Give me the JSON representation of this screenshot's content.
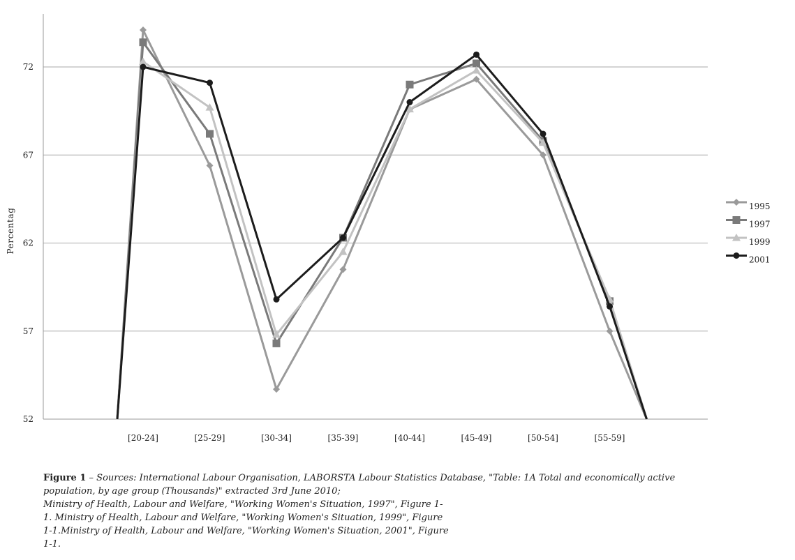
{
  "chart_data": {
    "type": "line",
    "title": "",
    "xlabel": "",
    "ylabel": "Percentag",
    "categories": [
      "[20-24]",
      "[25-29]",
      "[30-34]",
      "[35-39]",
      "[40-44]",
      "[45-49]",
      "[50-54]",
      "[55-59]"
    ],
    "yticks": [
      "52",
      "57",
      "62",
      "67",
      "72"
    ],
    "ylim": [
      52,
      75
    ],
    "grid": "horizontal",
    "legend_position": "right",
    "series": [
      {
        "name": "1995",
        "marker": "diamond",
        "color": "#9a9a9a",
        "values": [
          74.1,
          66.4,
          53.7,
          60.5,
          69.6,
          71.3,
          67.0,
          57.0
        ],
        "end_value": 52.0
      },
      {
        "name": "1997",
        "marker": "square",
        "color": "#7a7a7a",
        "values": [
          73.4,
          68.2,
          56.3,
          62.3,
          71.0,
          72.2,
          67.8,
          58.7
        ],
        "end_value": 52.0
      },
      {
        "name": "1999",
        "marker": "triangle",
        "color": "#c2c2c2",
        "values": [
          72.3,
          69.7,
          56.8,
          61.5,
          69.6,
          71.8,
          67.7,
          58.8
        ],
        "end_value": 52.0
      },
      {
        "name": "2001",
        "marker": "circle",
        "color": "#1c1c1c",
        "values": [
          72.0,
          71.1,
          58.8,
          62.3,
          70.0,
          72.7,
          68.2,
          58.4
        ],
        "end_value": 52.0
      }
    ],
    "start_value": 52.0
  },
  "caption": {
    "label": "Figure 1",
    "dash": " – ",
    "lines": [
      "Sources: International Labour Organisation, LABORSTA Labour Statistics Database, \"Table: 1A Total and economically active",
      "population, by age group (Thousands)\" extracted 3rd June 2010;",
      "Ministry of Health, Labour and Welfare, \"Working Women's Situation, 1997\", Figure 1-",
      "1. Ministry of Health, Labour and Welfare, \"Working Women's Situation, 1999\", Figure",
      "1-1.Ministry of Health, Labour and Welfare, \"Working Women's Situation, 2001\", Figure",
      "1-1."
    ]
  }
}
